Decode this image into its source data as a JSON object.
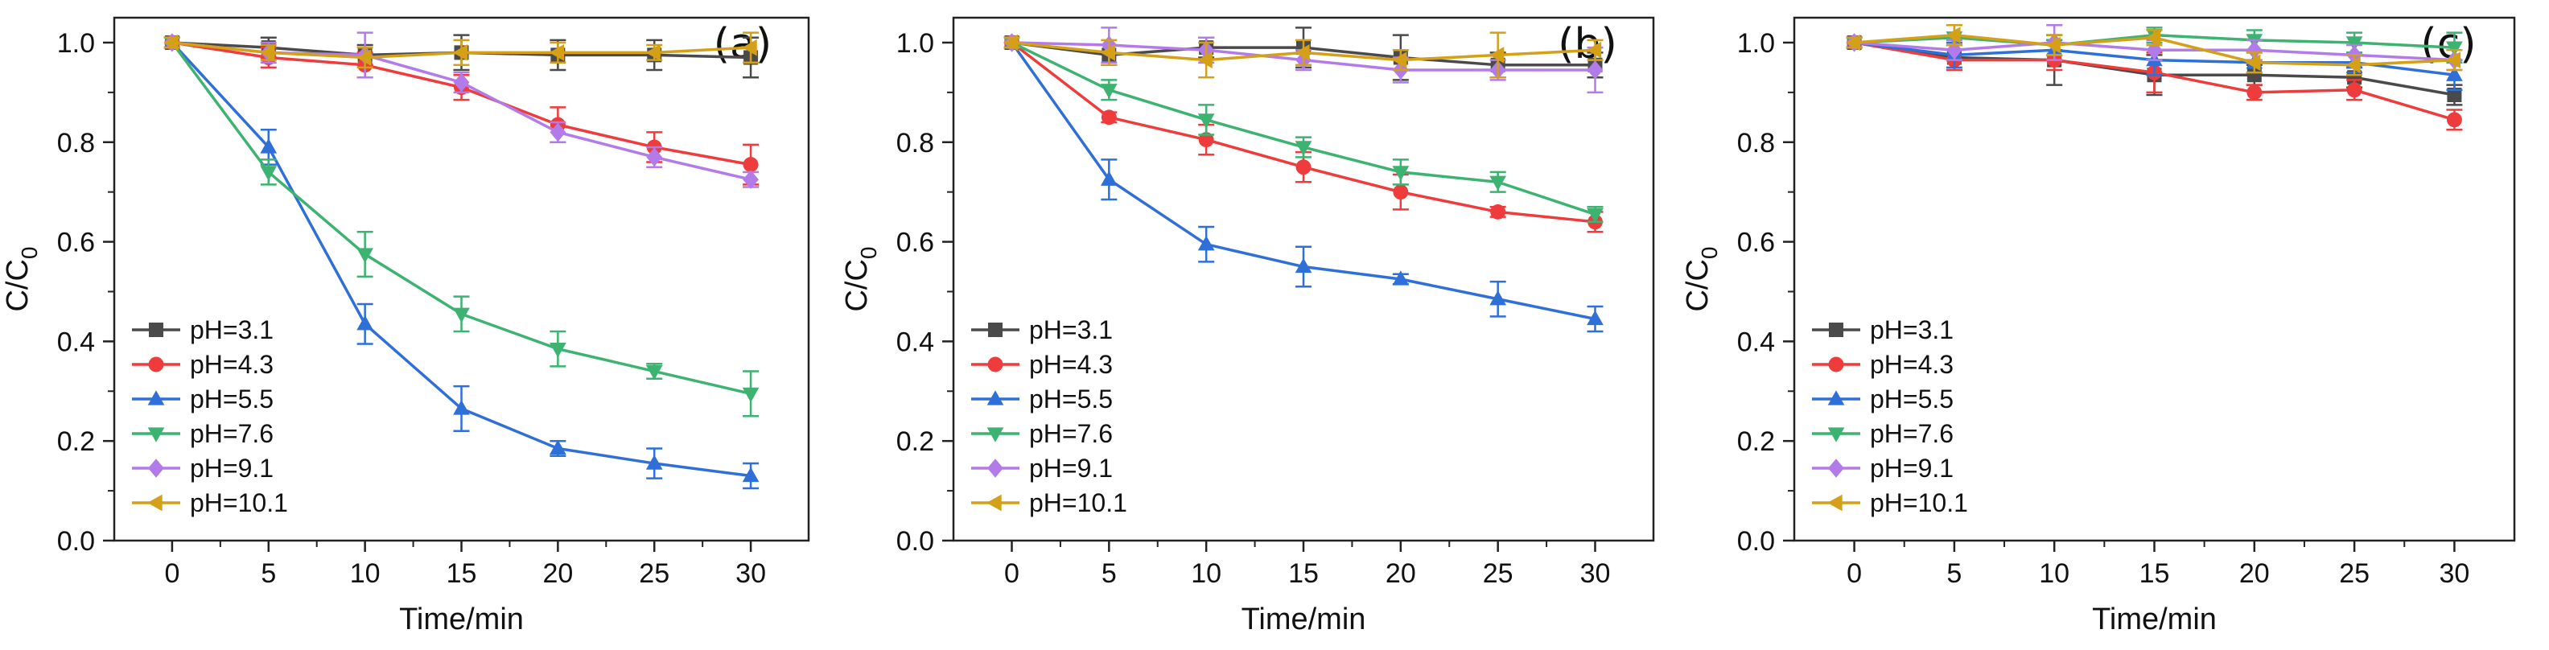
{
  "figure": {
    "series_meta": [
      {
        "name": "pH=3.1",
        "color": "#4a4a4a",
        "marker": "square"
      },
      {
        "name": "pH=4.3",
        "color": "#ee3b3b",
        "marker": "circle"
      },
      {
        "name": "pH=5.5",
        "color": "#2f6fd8",
        "marker": "triangle-up"
      },
      {
        "name": "pH=7.6",
        "color": "#3cb371",
        "marker": "triangle-down"
      },
      {
        "name": "pH=9.1",
        "color": "#b37bea",
        "marker": "diamond"
      },
      {
        "name": "pH=10.1",
        "color": "#d4a017",
        "marker": "triangle-left"
      }
    ]
  },
  "chart_data": [
    {
      "type": "line",
      "panel_label": "(a)",
      "title": "",
      "xlabel": "Time/min",
      "ylabel": "C/C",
      "ylabel_sub": "0",
      "xlim": [
        -3,
        33
      ],
      "ylim": [
        0,
        1.05
      ],
      "xticks": [
        "0",
        "5",
        "10",
        "15",
        "20",
        "25",
        "30"
      ],
      "yticks": [
        "0.0",
        "0.2",
        "0.4",
        "0.6",
        "0.8",
        "1.0"
      ],
      "legend_position": "bottom-left",
      "x": [
        0,
        5,
        10,
        15,
        20,
        25,
        30
      ],
      "series": [
        {
          "name": "pH=3.1",
          "values": [
            1.0,
            0.99,
            0.975,
            0.98,
            0.975,
            0.975,
            0.97
          ],
          "errors": [
            0.01,
            0.02,
            0.02,
            0.035,
            0.03,
            0.03,
            0.04
          ]
        },
        {
          "name": "pH=4.3",
          "values": [
            1.0,
            0.97,
            0.955,
            0.91,
            0.835,
            0.79,
            0.755
          ],
          "errors": [
            0.01,
            0.02,
            0.025,
            0.025,
            0.035,
            0.03,
            0.04
          ]
        },
        {
          "name": "pH=5.5",
          "values": [
            1.0,
            0.79,
            0.435,
            0.265,
            0.185,
            0.155,
            0.13
          ],
          "errors": [
            0.01,
            0.035,
            0.04,
            0.045,
            0.015,
            0.03,
            0.025
          ]
        },
        {
          "name": "pH=7.6",
          "values": [
            1.0,
            0.74,
            0.575,
            0.455,
            0.385,
            0.34,
            0.295
          ],
          "errors": [
            0.01,
            0.025,
            0.045,
            0.035,
            0.035,
            0.015,
            0.045
          ]
        },
        {
          "name": "pH=9.1",
          "values": [
            1.0,
            0.98,
            0.975,
            0.92,
            0.82,
            0.77,
            0.725
          ],
          "errors": [
            0.01,
            0.02,
            0.045,
            0.02,
            0.02,
            0.02,
            0.015
          ]
        },
        {
          "name": "pH=10.1",
          "values": [
            1.0,
            0.98,
            0.97,
            0.98,
            0.98,
            0.98,
            0.99
          ],
          "errors": [
            0.01,
            0.015,
            0.02,
            0.025,
            0.02,
            0.015,
            0.03
          ]
        }
      ]
    },
    {
      "type": "line",
      "panel_label": "(b)",
      "title": "",
      "xlabel": "Time/min",
      "ylabel": "C/C",
      "ylabel_sub": "0",
      "xlim": [
        -3,
        33
      ],
      "ylim": [
        0,
        1.05
      ],
      "xticks": [
        "0",
        "5",
        "10",
        "15",
        "20",
        "25",
        "30"
      ],
      "yticks": [
        "0.0",
        "0.2",
        "0.4",
        "0.6",
        "0.8",
        "1.0"
      ],
      "legend_position": "bottom-left",
      "x": [
        0,
        5,
        10,
        15,
        20,
        25,
        30
      ],
      "series": [
        {
          "name": "pH=3.1",
          "values": [
            1.0,
            0.975,
            0.99,
            0.99,
            0.97,
            0.955,
            0.955
          ],
          "errors": [
            0.01,
            0.02,
            0.02,
            0.04,
            0.045,
            0.025,
            0.025
          ]
        },
        {
          "name": "pH=4.3",
          "values": [
            1.0,
            0.85,
            0.805,
            0.75,
            0.7,
            0.66,
            0.64
          ],
          "errors": [
            0.01,
            0.01,
            0.03,
            0.03,
            0.035,
            0.01,
            0.02
          ]
        },
        {
          "name": "pH=5.5",
          "values": [
            1.0,
            0.725,
            0.595,
            0.55,
            0.525,
            0.485,
            0.445
          ],
          "errors": [
            0.01,
            0.04,
            0.035,
            0.04,
            0.01,
            0.035,
            0.025
          ]
        },
        {
          "name": "pH=7.6",
          "values": [
            1.0,
            0.905,
            0.845,
            0.79,
            0.74,
            0.72,
            0.655
          ],
          "errors": [
            0.01,
            0.02,
            0.03,
            0.02,
            0.025,
            0.02,
            0.015
          ]
        },
        {
          "name": "pH=9.1",
          "values": [
            1.0,
            0.995,
            0.985,
            0.965,
            0.945,
            0.945,
            0.945
          ],
          "errors": [
            0.01,
            0.035,
            0.025,
            0.02,
            0.025,
            0.02,
            0.045
          ]
        },
        {
          "name": "pH=10.1",
          "values": [
            1.0,
            0.98,
            0.965,
            0.98,
            0.965,
            0.975,
            0.985
          ],
          "errors": [
            0.01,
            0.025,
            0.035,
            0.025,
            0.02,
            0.045,
            0.02
          ]
        }
      ]
    },
    {
      "type": "line",
      "panel_label": "(c)",
      "title": "",
      "xlabel": "Time/min",
      "ylabel": "C/C",
      "ylabel_sub": "0",
      "xlim": [
        -3,
        33
      ],
      "ylim": [
        0,
        1.05
      ],
      "xticks": [
        "0",
        "5",
        "10",
        "15",
        "20",
        "25",
        "30"
      ],
      "yticks": [
        "0.0",
        "0.2",
        "0.4",
        "0.6",
        "0.8",
        "1.0"
      ],
      "legend_position": "bottom-left",
      "x": [
        0,
        5,
        10,
        15,
        20,
        25,
        30
      ],
      "series": [
        {
          "name": "pH=3.1",
          "values": [
            1.0,
            0.97,
            0.965,
            0.935,
            0.935,
            0.93,
            0.895
          ],
          "errors": [
            0.01,
            0.025,
            0.05,
            0.04,
            0.02,
            0.02,
            0.02
          ]
        },
        {
          "name": "pH=4.3",
          "values": [
            1.0,
            0.965,
            0.965,
            0.94,
            0.9,
            0.905,
            0.845
          ],
          "errors": [
            0.01,
            0.02,
            0.02,
            0.04,
            0.015,
            0.02,
            0.02
          ]
        },
        {
          "name": "pH=5.5",
          "values": [
            1.0,
            0.975,
            0.985,
            0.965,
            0.96,
            0.96,
            0.935
          ],
          "errors": [
            0.01,
            0.025,
            0.02,
            0.03,
            0.02,
            0.02,
            0.03
          ]
        },
        {
          "name": "pH=7.6",
          "values": [
            1.0,
            1.01,
            0.995,
            1.015,
            1.005,
            1.0,
            0.99
          ],
          "errors": [
            0.01,
            0.025,
            0.02,
            0.015,
            0.02,
            0.02,
            0.03
          ]
        },
        {
          "name": "pH=9.1",
          "values": [
            1.0,
            0.985,
            1.0,
            0.985,
            0.985,
            0.975,
            0.965
          ],
          "errors": [
            0.01,
            0.02,
            0.035,
            0.02,
            0.02,
            0.02,
            0.02
          ]
        },
        {
          "name": "pH=10.1",
          "values": [
            1.0,
            1.015,
            0.995,
            1.01,
            0.96,
            0.955,
            0.965
          ],
          "errors": [
            0.01,
            0.02,
            0.02,
            0.015,
            0.02,
            0.02,
            0.02
          ]
        }
      ]
    }
  ]
}
